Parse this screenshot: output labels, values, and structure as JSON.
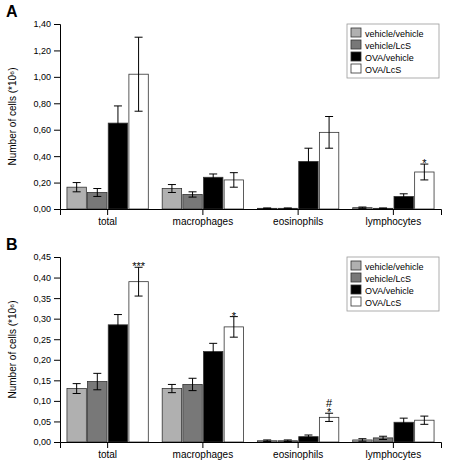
{
  "chart_data": [
    {
      "type": "bar",
      "title": "A",
      "ylabel": "Number of cells (*10⁶)",
      "categories": [
        "total",
        "macrophages",
        "eosinophils",
        "lymphocytes"
      ],
      "series": [
        {
          "name": "vehicle/vehicle",
          "color": "#b0b0b0",
          "values": [
            0.165,
            0.155,
            0.005,
            0.01
          ],
          "errors": [
            0.035,
            0.03,
            0.003,
            0.005
          ]
        },
        {
          "name": "vehicle/LcS",
          "color": "#787878",
          "values": [
            0.125,
            0.11,
            0.005,
            0.005
          ],
          "errors": [
            0.03,
            0.02,
            0.003,
            0.003
          ]
        },
        {
          "name": "OVA/vehicle",
          "color": "#000000",
          "values": [
            0.65,
            0.24,
            0.36,
            0.095
          ],
          "errors": [
            0.13,
            0.025,
            0.1,
            0.02
          ]
        },
        {
          "name": "OVA/LcS",
          "color": "#ffffff",
          "values": [
            1.02,
            0.22,
            0.58,
            0.28
          ],
          "errors": [
            0.28,
            0.055,
            0.12,
            0.06
          ]
        }
      ],
      "ylim": [
        0,
        1.4
      ],
      "yticks": [
        {
          "value": 0.0,
          "label": "0,00"
        },
        {
          "value": 0.2,
          "label": "0,20"
        },
        {
          "value": 0.4,
          "label": "0,40"
        },
        {
          "value": 0.6,
          "label": "0,60"
        },
        {
          "value": 0.8,
          "label": "0,80"
        },
        {
          "value": 1.0,
          "label": "1,00"
        },
        {
          "value": 1.2,
          "label": "1,20"
        },
        {
          "value": 1.4,
          "label": "1,40"
        }
      ],
      "annotations": [
        {
          "text": "*",
          "category": "lymphocytes",
          "series": "OVA/LcS"
        }
      ],
      "legend": "upper right",
      "grid": false
    },
    {
      "type": "bar",
      "title": "B",
      "ylabel": "Number of cells (*10⁶)",
      "categories": [
        "total",
        "macrophages",
        "eosinophils",
        "lymphocytes"
      ],
      "series": [
        {
          "name": "vehicle/vehicle",
          "color": "#b0b0b0",
          "values": [
            0.13,
            0.13,
            0.003,
            0.005
          ],
          "errors": [
            0.012,
            0.01,
            0.002,
            0.003
          ]
        },
        {
          "name": "vehicle/LcS",
          "color": "#787878",
          "values": [
            0.147,
            0.14,
            0.003,
            0.01
          ],
          "errors": [
            0.02,
            0.015,
            0.002,
            0.004
          ]
        },
        {
          "name": "OVA/vehicle",
          "color": "#000000",
          "values": [
            0.285,
            0.22,
            0.013,
            0.048
          ],
          "errors": [
            0.025,
            0.02,
            0.004,
            0.01
          ]
        },
        {
          "name": "OVA/LcS",
          "color": "#ffffff",
          "values": [
            0.39,
            0.28,
            0.06,
            0.053
          ],
          "errors": [
            0.035,
            0.025,
            0.01,
            0.01
          ]
        }
      ],
      "ylim": [
        0,
        0.45
      ],
      "yticks": [
        {
          "value": 0.0,
          "label": "0,00"
        },
        {
          "value": 0.05,
          "label": "0,05"
        },
        {
          "value": 0.1,
          "label": "0,10"
        },
        {
          "value": 0.15,
          "label": "0,15"
        },
        {
          "value": 0.2,
          "label": "0,20"
        },
        {
          "value": 0.25,
          "label": "0,25"
        },
        {
          "value": 0.3,
          "label": "0,30"
        },
        {
          "value": 0.35,
          "label": "0,35"
        },
        {
          "value": 0.4,
          "label": "0,40"
        },
        {
          "value": 0.45,
          "label": "0,45"
        }
      ],
      "annotations": [
        {
          "text": "***",
          "category": "total",
          "series": "OVA/LcS"
        },
        {
          "text": "*",
          "category": "macrophages",
          "series": "OVA/LcS"
        },
        {
          "text": "#\n*",
          "category": "eosinophils",
          "series": "OVA/LcS"
        }
      ],
      "legend": "upper right",
      "grid": false
    }
  ]
}
